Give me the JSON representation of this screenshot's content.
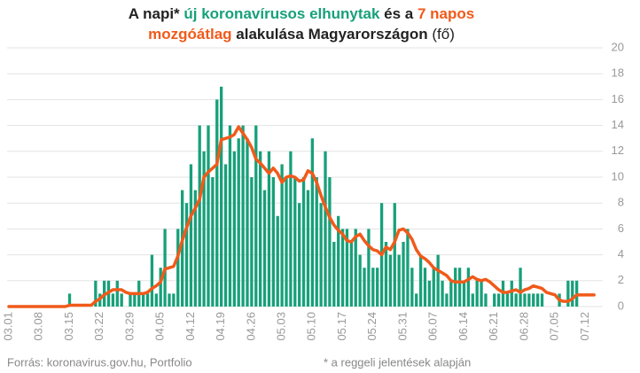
{
  "chart_data": {
    "type": "bar",
    "title": [
      "A napi* ",
      "új koronavírusos elhunytak",
      " és a ",
      "7 napos",
      "mozgóátlag",
      " alakulása Magyarországon ",
      "(fő)"
    ],
    "source": "Forrás: koronavirus.gov.hu, Portfolio",
    "note": "* a reggeli jelentések alapján",
    "categories": [
      "03.01",
      null,
      null,
      null,
      null,
      null,
      null,
      "03.08",
      null,
      null,
      null,
      null,
      null,
      null,
      "03.15",
      null,
      null,
      null,
      null,
      null,
      null,
      "03.22",
      null,
      null,
      null,
      null,
      null,
      null,
      "03.29",
      null,
      null,
      null,
      null,
      null,
      null,
      "04.05",
      null,
      null,
      null,
      null,
      null,
      null,
      "04.12",
      null,
      null,
      null,
      null,
      null,
      null,
      "04.19",
      null,
      null,
      null,
      null,
      null,
      null,
      "04.26",
      null,
      null,
      null,
      null,
      null,
      null,
      "05.03",
      null,
      null,
      null,
      null,
      null,
      null,
      "05.10",
      null,
      null,
      null,
      null,
      null,
      null,
      "05.17",
      null,
      null,
      null,
      null,
      null,
      null,
      "05.24",
      null,
      null,
      null,
      null,
      null,
      null,
      "05.31",
      null,
      null,
      null,
      null,
      null,
      null,
      "06.07",
      null,
      null,
      null,
      null,
      null,
      null,
      "06.14",
      null,
      null,
      null,
      null,
      null,
      null,
      "06.21",
      null,
      null,
      null,
      null,
      null,
      null,
      "06.28",
      null,
      null,
      null,
      null,
      null,
      null,
      "07.05",
      null,
      null,
      null,
      null,
      null,
      null,
      "07.12",
      null,
      null
    ],
    "series": [
      {
        "type": "bar",
        "color": "#17a07a",
        "values": [
          0,
          0,
          0,
          0,
          0,
          0,
          0,
          0,
          0,
          0,
          0,
          0,
          0,
          0,
          1,
          0,
          0,
          0,
          0,
          0,
          2,
          1,
          2,
          2,
          1,
          2,
          1,
          0,
          1,
          1,
          2,
          1,
          1,
          4,
          1,
          3,
          6,
          1,
          1,
          6,
          9,
          8,
          11,
          9,
          14,
          12,
          14,
          10,
          16,
          17,
          11,
          14,
          12,
          13,
          14,
          13,
          10,
          14,
          12,
          9,
          12,
          10,
          7,
          11,
          10,
          12,
          10,
          8,
          10,
          9,
          13,
          10,
          8,
          12,
          10,
          5,
          7,
          6,
          6,
          5,
          6,
          4,
          3,
          6,
          3,
          3,
          8,
          5,
          4,
          8,
          4,
          5,
          6,
          3,
          1,
          4,
          3,
          2,
          3,
          4,
          2,
          1,
          2,
          3,
          3,
          2,
          3,
          1,
          2,
          2,
          1,
          0,
          1,
          1,
          2,
          1,
          2,
          1,
          3,
          1,
          1,
          1,
          1,
          1,
          0,
          0,
          0,
          1,
          0,
          2,
          2,
          2,
          0,
          0,
          0,
          0
        ]
      },
      {
        "type": "line",
        "color": "#f05a1a",
        "values": [
          0,
          0,
          0,
          0,
          0,
          0,
          0,
          0,
          0,
          0,
          0,
          0,
          0,
          0,
          0.1,
          0.1,
          0.1,
          0.1,
          0.1,
          0.1,
          0.4,
          0.6,
          0.9,
          1.1,
          1.3,
          1.3,
          1.3,
          1.1,
          1.0,
          1.0,
          1.0,
          1.0,
          1.1,
          1.4,
          1.6,
          1.9,
          2.9,
          3.0,
          3.1,
          3.9,
          5.1,
          6.1,
          7.0,
          7.6,
          8.3,
          10.0,
          10.4,
          10.7,
          11.0,
          12.9,
          13.0,
          13.1,
          13.3,
          13.9,
          13.4,
          12.9,
          12.3,
          11.4,
          11.1,
          10.7,
          10.3,
          10.7,
          10.3,
          9.6,
          10.0,
          10.1,
          10.0,
          9.7,
          9.8,
          10.5,
          10.3,
          9.6,
          8.6,
          7.7,
          6.9,
          6.3,
          5.9,
          5.6,
          5.1,
          5.0,
          5.4,
          5.6,
          5.1,
          4.7,
          4.4,
          4.3,
          4.0,
          4.6,
          4.4,
          5.0,
          5.9,
          6.0,
          5.7,
          5.2,
          4.4,
          3.9,
          3.7,
          3.4,
          3.0,
          2.8,
          2.6,
          2.4,
          2.0,
          1.9,
          1.9,
          1.9,
          2.1,
          2.3,
          2.1,
          2.0,
          2.1,
          1.9,
          1.6,
          1.3,
          1.1,
          1.1,
          1.2,
          1.3,
          1.1,
          1.3,
          1.4,
          1.6,
          1.5,
          1.4,
          1.1,
          1.0,
          0.9,
          0.5,
          0.4,
          0.4,
          0.6,
          0.9,
          0.9,
          0.9,
          0.9,
          0.9
        ]
      }
    ],
    "ylim": [
      0,
      20
    ],
    "yticks": [
      0,
      2,
      4,
      6,
      8,
      10,
      12,
      14,
      16,
      18,
      20
    ],
    "grid": true
  }
}
